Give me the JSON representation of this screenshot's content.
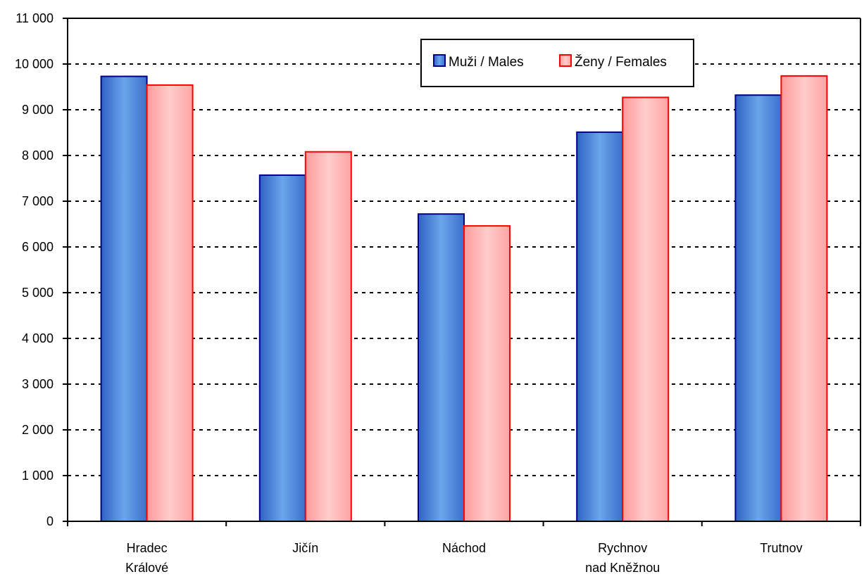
{
  "chart_data": {
    "type": "bar",
    "categories": [
      [
        "Hradec",
        "Králové"
      ],
      [
        "Jičín"
      ],
      [
        "Náchod"
      ],
      [
        "Rychnov",
        "nad Kněžnou"
      ],
      [
        "Trutnov"
      ]
    ],
    "series": [
      {
        "name": "Muži / Males",
        "values": [
          9730,
          7570,
          6720,
          8510,
          9320
        ],
        "color": "#4a86d8",
        "edge": "#00008b"
      },
      {
        "name": "Ženy / Females",
        "values": [
          9540,
          8080,
          6460,
          9270,
          9740
        ],
        "color": "#ffa8a8",
        "edge": "#ff0000"
      }
    ],
    "ylim": [
      0,
      11000
    ],
    "yticks": [
      0,
      1000,
      2000,
      3000,
      4000,
      5000,
      6000,
      7000,
      8000,
      9000,
      10000,
      11000
    ],
    "ytick_labels": [
      "0",
      "1 000",
      "2 000",
      "3 000",
      "4 000",
      "5 000",
      "6 000",
      "7 000",
      "8 000",
      "9 000",
      "10 000",
      "11 000"
    ],
    "grid": "dashed horizontal",
    "legend_position": "top-center",
    "title": "",
    "xlabel": "",
    "ylabel": ""
  }
}
